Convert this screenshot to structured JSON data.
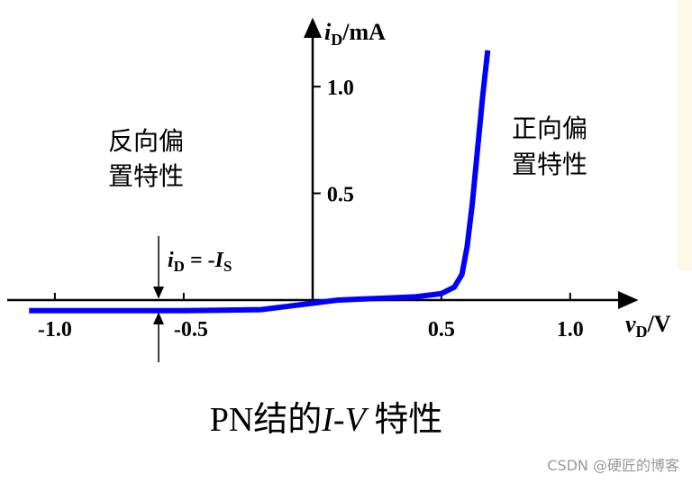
{
  "chart_data": {
    "type": "line",
    "y_label_parts": [
      "i",
      "D",
      "/mA"
    ],
    "x_label_parts": [
      "v",
      "D",
      "/V"
    ],
    "x": [
      -1.1,
      -0.8,
      -0.5,
      -0.2,
      -0.1,
      0,
      0.1,
      0.2,
      0.3,
      0.4,
      0.5,
      0.55,
      0.58,
      0.6,
      0.62,
      0.64,
      0.66,
      0.68
    ],
    "series": [
      {
        "color": "#0000ff",
        "values": [
          -0.05,
          -0.05,
          -0.05,
          -0.045,
          -0.03,
          -0.015,
          0,
          0.005,
          0.01,
          0.015,
          0.03,
          0.06,
          0.12,
          0.25,
          0.45,
          0.7,
          0.95,
          1.17
        ]
      }
    ],
    "xlim": [
      -1.185,
      1.27
    ],
    "ylim": [
      -0.3,
      1.33
    ],
    "xticks": [
      {
        "value": -1,
        "label": "-1.0"
      },
      -0.5,
      0.5,
      {
        "value": 1,
        "label": "1.0"
      }
    ],
    "yticks": [
      0.5,
      {
        "value": 1,
        "label": "1.0"
      }
    ],
    "reverse_label_lines": [
      "反向偏",
      "置特性"
    ],
    "forward_label_lines": [
      "正向偏",
      "置特性"
    ],
    "is_annotation_parts": [
      "i",
      "D",
      " = -",
      "I",
      "S"
    ],
    "caption_parts": [
      "PN结的",
      "I",
      "-",
      "V",
      " 特性"
    ],
    "watermark": "CSDN @硬匠的博客"
  }
}
